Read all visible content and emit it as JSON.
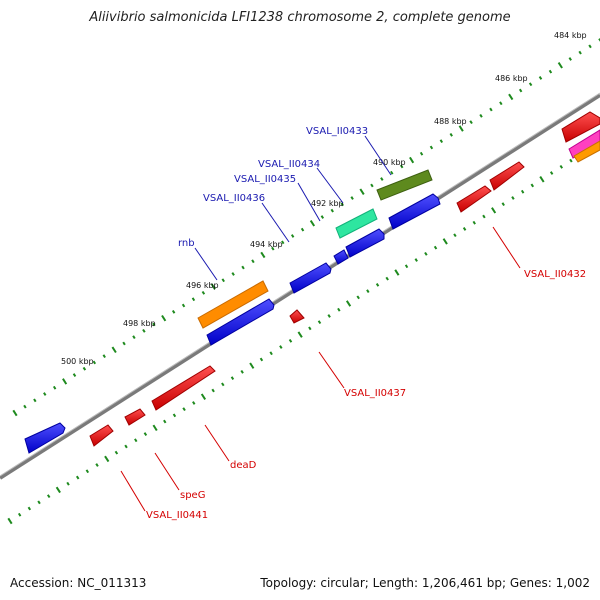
{
  "title": "Aliivibrio salmonicida LFI1238 chromosome 2, complete genome",
  "footer": {
    "accession": "Accession: NC_011313",
    "summary": "Topology: circular; Length: 1,206,461 bp; Genes: 1,002"
  },
  "colors": {
    "backbone": "#707070",
    "ticks": "#1e8a1e",
    "gene_label_forward": "#1a1ab0",
    "gene_label_reverse": "#d40000",
    "forward_feature": "#0000ee",
    "reverse_feature": "#ee0000"
  },
  "tick_labels": [
    "484 kbp",
    "486 kbp",
    "488 kbp",
    "490 kbp",
    "492 kbp",
    "494 kbp",
    "496 kbp",
    "498 kbp",
    "500 kbp"
  ],
  "gene_labels_forward": [
    "VSAL_II0433",
    "VSAL_II0434",
    "VSAL_II0435",
    "VSAL_II0436",
    "rnb"
  ],
  "gene_labels_reverse": [
    "VSAL_II0432",
    "VSAL_II0437",
    "deaD",
    "speG",
    "VSAL_II0441"
  ]
}
